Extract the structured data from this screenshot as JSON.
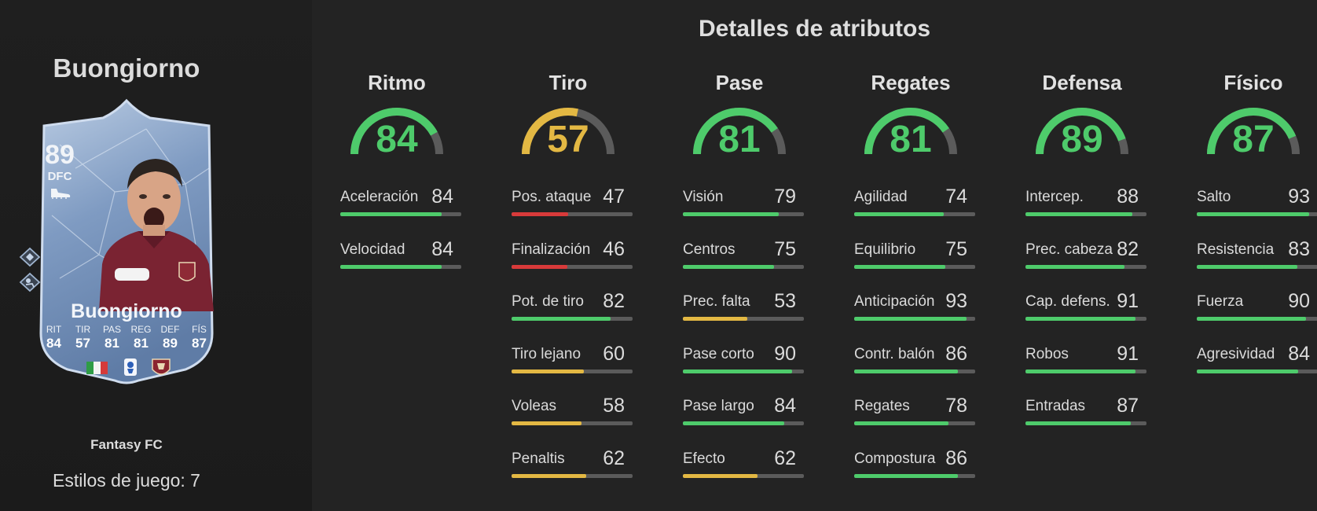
{
  "colors": {
    "green": "#4ecb6b",
    "yellow": "#e3b843",
    "red": "#d83a3a",
    "track": "#5b5b5b"
  },
  "left": {
    "player_name": "Buongiorno",
    "card": {
      "rating": "89",
      "position": "DFC",
      "name": "Buongiorno",
      "stats": [
        {
          "label": "RIT",
          "value": "84"
        },
        {
          "label": "TIR",
          "value": "57"
        },
        {
          "label": "PAS",
          "value": "81"
        },
        {
          "label": "REG",
          "value": "81"
        },
        {
          "label": "DEF",
          "value": "89"
        },
        {
          "label": "FÍS",
          "value": "87"
        }
      ],
      "icons": [
        "boot-icon",
        "chemistry-style-icon",
        "playstyle-icon",
        "italy-flag-icon",
        "serie-a-logo",
        "torino-crest"
      ]
    },
    "version": "Fantasy FC",
    "playstyles": "Estilos de juego: 7"
  },
  "title": "Detalles de atributos",
  "categories": [
    {
      "name": "Ritmo",
      "value": 84,
      "attributes": [
        {
          "label": "Aceleración",
          "value": 84
        },
        {
          "label": "Velocidad",
          "value": 84
        }
      ]
    },
    {
      "name": "Tiro",
      "value": 57,
      "attributes": [
        {
          "label": "Pos. ataque",
          "value": 47
        },
        {
          "label": "Finalización",
          "value": 46
        },
        {
          "label": "Pot. de tiro",
          "value": 82
        },
        {
          "label": "Tiro lejano",
          "value": 60
        },
        {
          "label": "Voleas",
          "value": 58
        },
        {
          "label": "Penaltis",
          "value": 62
        }
      ]
    },
    {
      "name": "Pase",
      "value": 81,
      "attributes": [
        {
          "label": "Visión",
          "value": 79
        },
        {
          "label": "Centros",
          "value": 75
        },
        {
          "label": "Prec. falta",
          "value": 53
        },
        {
          "label": "Pase corto",
          "value": 90
        },
        {
          "label": "Pase largo",
          "value": 84
        },
        {
          "label": "Efecto",
          "value": 62
        }
      ]
    },
    {
      "name": "Regates",
      "value": 81,
      "attributes": [
        {
          "label": "Agilidad",
          "value": 74
        },
        {
          "label": "Equilibrio",
          "value": 75
        },
        {
          "label": "Anticipación",
          "value": 93
        },
        {
          "label": "Contr. balón",
          "value": 86
        },
        {
          "label": "Regates",
          "value": 78
        },
        {
          "label": "Compostura",
          "value": 86
        }
      ]
    },
    {
      "name": "Defensa",
      "value": 89,
      "attributes": [
        {
          "label": "Intercep.",
          "value": 88
        },
        {
          "label": "Prec. cabeza",
          "value": 82
        },
        {
          "label": "Cap. defens.",
          "value": 91
        },
        {
          "label": "Robos",
          "value": 91
        },
        {
          "label": "Entradas",
          "value": 87
        }
      ]
    },
    {
      "name": "Físico",
      "value": 87,
      "attributes": [
        {
          "label": "Salto",
          "value": 93
        },
        {
          "label": "Resistencia",
          "value": 83
        },
        {
          "label": "Fuerza",
          "value": 90
        },
        {
          "label": "Agresividad",
          "value": 84
        }
      ]
    }
  ]
}
